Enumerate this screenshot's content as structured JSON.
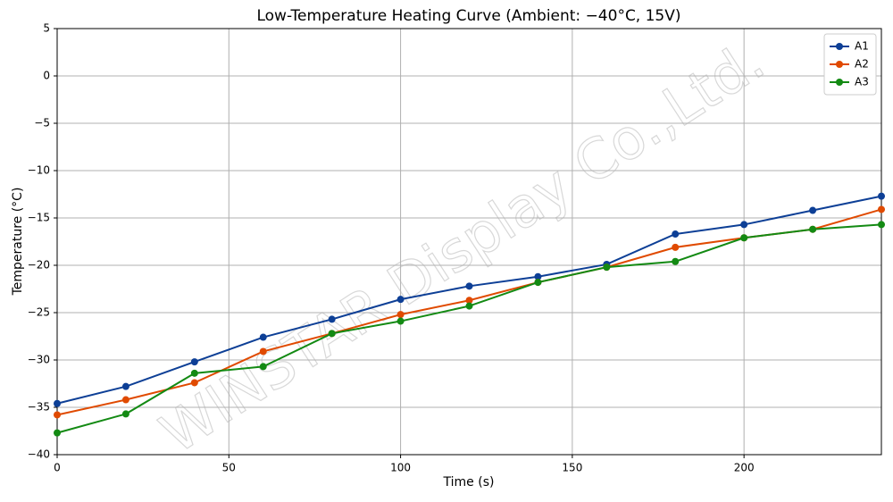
{
  "chart_data": {
    "type": "line",
    "title": "Low-Temperature Heating Curve (Ambient: −40°C, 15V)",
    "x_label": "Time (s)",
    "y_label": "Temperature (°C)",
    "watermark": "WINSTAR Display Co.,Ltd.",
    "x": [
      0,
      20,
      40,
      60,
      80,
      100,
      120,
      140,
      160,
      180,
      200,
      220,
      240
    ],
    "series": [
      {
        "name": "A1",
        "color": "#0d3f96",
        "values": [
          -34.6,
          -32.8,
          -30.2,
          -27.6,
          -25.7,
          -23.6,
          -22.2,
          -21.2,
          -19.9,
          -16.7,
          -15.7,
          -14.2,
          -12.7
        ]
      },
      {
        "name": "A2",
        "color": "#e04a00",
        "values": [
          -35.8,
          -34.2,
          -32.4,
          -29.1,
          -27.2,
          -25.2,
          -23.7,
          -21.8,
          -20.2,
          -18.1,
          -17.1,
          -16.2,
          -14.1
        ]
      },
      {
        "name": "A3",
        "color": "#138a13",
        "values": [
          -37.7,
          -35.7,
          -31.4,
          -30.7,
          -27.2,
          -25.9,
          -24.3,
          -21.8,
          -20.2,
          -19.6,
          -17.1,
          -16.2,
          -15.7
        ]
      }
    ],
    "xlim": [
      0,
      240
    ],
    "xticks": [
      0,
      50,
      100,
      150,
      200
    ],
    "ylim": [
      -40,
      5
    ],
    "yticks": [
      {
        "value": -40,
        "label": "−40"
      },
      {
        "value": -35,
        "label": "−35"
      },
      {
        "value": -30,
        "label": "−30"
      },
      {
        "value": -25,
        "label": "−25"
      },
      {
        "value": -20,
        "label": "−20"
      },
      {
        "value": -15,
        "label": "−15"
      },
      {
        "value": -10,
        "label": "−10"
      },
      {
        "value": -5,
        "label": "−5"
      },
      0,
      5
    ],
    "grid": true,
    "legend": "upper right"
  }
}
